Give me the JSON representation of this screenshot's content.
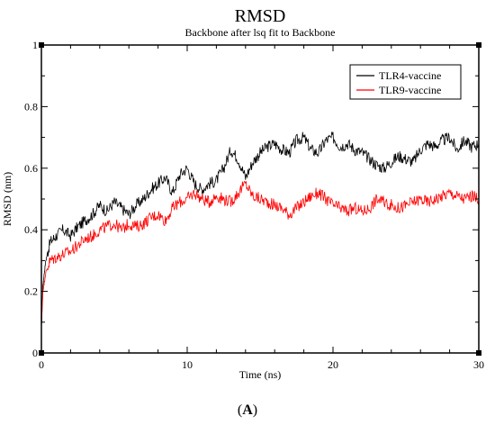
{
  "panel_label": {
    "open": "(",
    "letter": "A",
    "close": ")"
  },
  "chart_data": {
    "type": "line",
    "title": "RMSD",
    "subtitle": "Backbone after lsq fit to Backbone",
    "xlabel": "Time (ns)",
    "ylabel": "RMSD (nm)",
    "xlim": [
      0,
      30
    ],
    "ylim": [
      0,
      1
    ],
    "x_ticks": [
      0,
      10,
      20,
      30
    ],
    "y_ticks": [
      0,
      0.2,
      0.4,
      0.6,
      0.8,
      1
    ],
    "y_tick_labels": [
      "0",
      "0.2",
      "0.4",
      "0.6",
      "0.8",
      "1"
    ],
    "grid": false,
    "legend_position": "top-right",
    "series": [
      {
        "name": "TLR4-vaccine",
        "color": "#000000",
        "x": [
          0,
          0.1,
          0.3,
          0.6,
          1,
          1.5,
          2,
          2.5,
          3,
          3.5,
          4,
          4.5,
          5,
          5.5,
          6,
          6.5,
          7,
          7.5,
          8,
          8.5,
          9,
          9.5,
          10,
          10.5,
          11,
          11.5,
          12,
          12.5,
          13,
          13.5,
          14,
          14.5,
          15,
          15.5,
          16,
          16.5,
          17,
          17.5,
          18,
          18.5,
          19,
          19.5,
          20,
          20.5,
          21,
          21.5,
          22,
          22.5,
          23,
          23.5,
          24,
          24.5,
          25,
          25.5,
          26,
          26.5,
          27,
          27.5,
          28,
          28.5,
          29,
          29.5,
          30
        ],
        "y": [
          0.08,
          0.22,
          0.3,
          0.36,
          0.38,
          0.4,
          0.38,
          0.41,
          0.43,
          0.45,
          0.48,
          0.46,
          0.49,
          0.47,
          0.45,
          0.48,
          0.5,
          0.53,
          0.55,
          0.57,
          0.52,
          0.58,
          0.6,
          0.55,
          0.53,
          0.55,
          0.56,
          0.6,
          0.66,
          0.63,
          0.57,
          0.62,
          0.65,
          0.67,
          0.68,
          0.66,
          0.65,
          0.69,
          0.7,
          0.66,
          0.65,
          0.69,
          0.7,
          0.67,
          0.68,
          0.66,
          0.65,
          0.63,
          0.61,
          0.6,
          0.62,
          0.64,
          0.63,
          0.62,
          0.66,
          0.68,
          0.67,
          0.69,
          0.7,
          0.66,
          0.69,
          0.67,
          0.68
        ]
      },
      {
        "name": "TLR9-vaccine",
        "color": "#ff0000",
        "x": [
          0,
          0.1,
          0.3,
          0.6,
          1,
          1.5,
          2,
          2.5,
          3,
          3.5,
          4,
          4.5,
          5,
          5.5,
          6,
          6.5,
          7,
          7.5,
          8,
          8.5,
          9,
          9.5,
          10,
          10.5,
          11,
          11.5,
          12,
          12.5,
          13,
          13.5,
          14,
          14.5,
          15,
          15.5,
          16,
          16.5,
          17,
          17.5,
          18,
          18.5,
          19,
          19.5,
          20,
          20.5,
          21,
          21.5,
          22,
          22.5,
          23,
          23.5,
          24,
          24.5,
          25,
          25.5,
          26,
          26.5,
          27,
          27.5,
          28,
          28.5,
          29,
          29.5,
          30
        ],
        "y": [
          0.08,
          0.2,
          0.26,
          0.3,
          0.31,
          0.32,
          0.33,
          0.35,
          0.37,
          0.38,
          0.4,
          0.41,
          0.42,
          0.4,
          0.42,
          0.41,
          0.42,
          0.44,
          0.45,
          0.43,
          0.47,
          0.49,
          0.5,
          0.52,
          0.5,
          0.49,
          0.51,
          0.5,
          0.49,
          0.52,
          0.55,
          0.51,
          0.5,
          0.49,
          0.48,
          0.47,
          0.45,
          0.47,
          0.49,
          0.51,
          0.52,
          0.5,
          0.48,
          0.47,
          0.46,
          0.47,
          0.46,
          0.47,
          0.5,
          0.49,
          0.48,
          0.47,
          0.48,
          0.49,
          0.5,
          0.49,
          0.5,
          0.51,
          0.52,
          0.51,
          0.5,
          0.51,
          0.5
        ]
      }
    ]
  }
}
